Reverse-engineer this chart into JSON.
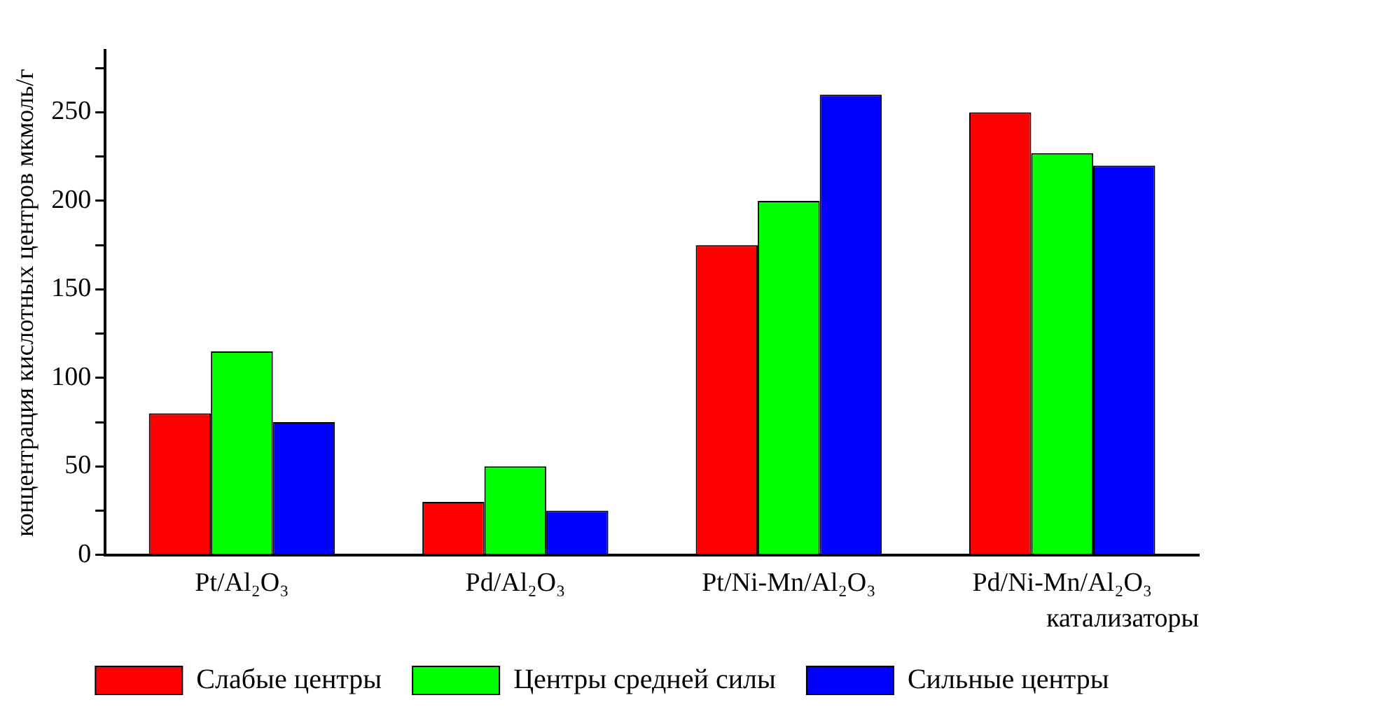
{
  "chart_data": {
    "type": "bar",
    "ylabel": "концентрация кислотных центров мкмоль/г",
    "xlabel": "катализаторы",
    "categories": [
      "Pt/Al₂O₃",
      "Pd/Al₂O₃",
      "Pt/Ni-Mn/Al₂O₃",
      "Pd/Ni-Mn/Al₂O₃"
    ],
    "series": [
      {
        "name": "Слабые центры",
        "color": "#ff0000",
        "values": [
          80,
          30,
          175,
          250
        ]
      },
      {
        "name": "Центры средней силы",
        "color": "#00ff00",
        "values": [
          115,
          50,
          200,
          227
        ]
      },
      {
        "name": "Сильные центры",
        "color": "#0000ff",
        "values": [
          75,
          25,
          260,
          220
        ]
      }
    ],
    "ylim": [
      0,
      285
    ],
    "yticks": [
      0,
      {
        "value": 25,
        "label": null
      },
      50,
      {
        "value": 75,
        "label": null
      },
      100,
      {
        "value": 125,
        "label": null
      },
      150,
      {
        "value": 175,
        "label": null
      },
      200,
      {
        "value": 225,
        "label": null
      },
      250,
      {
        "value": 275,
        "label": null
      }
    ],
    "grid": false,
    "legend": "bottom"
  }
}
